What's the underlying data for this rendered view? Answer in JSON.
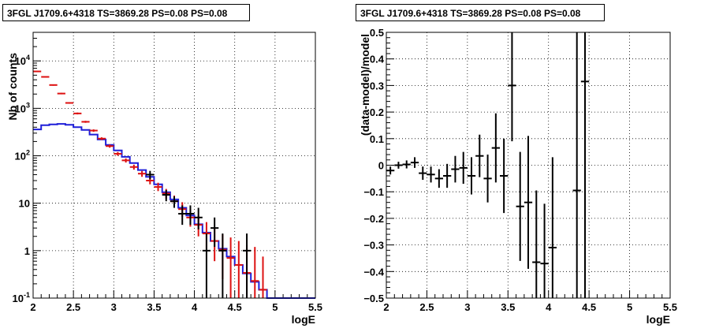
{
  "chart_data": [
    {
      "type": "line",
      "title": "3FGL J1709.6+4318 TS=3869.28 PS=0.08 PS=0.08",
      "xlabel": "logE",
      "ylabel": "Nb of counts",
      "xlim": [
        2,
        5.5
      ],
      "ylim": [
        0.1,
        40000
      ],
      "yscale": "log",
      "grid": true,
      "x_ticks": [
        "2",
        "2.5",
        "3",
        "3.5",
        "4",
        "4.5",
        "5",
        "5.5"
      ],
      "y_ticks": [
        {
          "base": "10",
          "exp": "-1",
          "value": 0.1
        },
        {
          "base": "1",
          "exp": "",
          "value": 1
        },
        {
          "base": "10",
          "exp": "",
          "value": 10
        },
        {
          "base": "10",
          "exp": "2",
          "value": 100
        },
        {
          "base": "10",
          "exp": "3",
          "value": 1000
        },
        {
          "base": "10",
          "exp": "4",
          "value": 10000
        }
      ],
      "bin_width": 0.1,
      "model_color": "#1f1fd8",
      "model_step": {
        "x_start": 2.0,
        "values": [
          360,
          440,
          460,
          470,
          450,
          400,
          350,
          280,
          220,
          170,
          130,
          95,
          70,
          50,
          36,
          25,
          17,
          12,
          8,
          5.5,
          3.6,
          2.4,
          1.6,
          1.1,
          0.75,
          0.5,
          0.33,
          0.22,
          0.15,
          0.1,
          0.1,
          0.1,
          0.1,
          0.1,
          0.1
        ]
      },
      "series": [
        {
          "name": "",
          "color": "#dd1111",
          "points": [
            {
              "x": 2.05,
              "y": 6000,
              "lo": 5850,
              "hi": 6150
            },
            {
              "x": 2.15,
              "y": 4600,
              "lo": 4480,
              "hi": 4720
            },
            {
              "x": 2.25,
              "y": 3100,
              "lo": 3000,
              "hi": 3200
            },
            {
              "x": 2.35,
              "y": 2050,
              "lo": 1980,
              "hi": 2120
            },
            {
              "x": 2.45,
              "y": 1300,
              "lo": 1250,
              "hi": 1350
            },
            {
              "x": 2.55,
              "y": 780,
              "lo": 745,
              "hi": 815
            },
            {
              "x": 2.65,
              "y": 520,
              "lo": 495,
              "hi": 545
            },
            {
              "x": 2.75,
              "y": 340,
              "lo": 320,
              "hi": 360
            },
            {
              "x": 2.85,
              "y": 230,
              "lo": 215,
              "hi": 245
            },
            {
              "x": 2.95,
              "y": 160,
              "lo": 148,
              "hi": 172
            },
            {
              "x": 3.05,
              "y": 110,
              "lo": 100,
              "hi": 120
            },
            {
              "x": 3.15,
              "y": 80,
              "lo": 72,
              "hi": 88
            },
            {
              "x": 3.25,
              "y": 58,
              "lo": 51,
              "hi": 65
            },
            {
              "x": 3.35,
              "y": 42,
              "lo": 36,
              "hi": 48
            },
            {
              "x": 3.45,
              "y": 30,
              "lo": 25,
              "hi": 35
            },
            {
              "x": 3.55,
              "y": 22,
              "lo": 18,
              "hi": 27
            },
            {
              "x": 3.65,
              "y": 16,
              "lo": 12.5,
              "hi": 20
            },
            {
              "x": 3.75,
              "y": 11,
              "lo": 8.2,
              "hi": 14.5
            },
            {
              "x": 3.85,
              "y": 7.5,
              "lo": 5.2,
              "hi": 10.5
            },
            {
              "x": 3.95,
              "y": 5,
              "lo": 3.2,
              "hi": 7.5
            },
            {
              "x": 4.05,
              "y": 3.5,
              "lo": 2,
              "hi": 5.5
            },
            {
              "x": 4.15,
              "y": 2.3,
              "lo": 1.1,
              "hi": 4
            },
            {
              "x": 4.25,
              "y": 1.6,
              "lo": 0.6,
              "hi": 3.1
            },
            {
              "x": 4.35,
              "y": 1.05,
              "lo": 0.25,
              "hi": 2.2
            },
            {
              "x": 4.45,
              "y": 0.7,
              "lo": 0.1,
              "hi": 1.9
            },
            {
              "x": 4.55,
              "y": 0.5,
              "lo": 0.1,
              "hi": 1.6
            },
            {
              "x": 4.65,
              "y": 0.34,
              "lo": 0.1,
              "hi": 1.3
            },
            {
              "x": 4.75,
              "y": 0.23,
              "lo": 0.1,
              "hi": 1.2
            },
            {
              "x": 4.85,
              "y": 0.15,
              "lo": 0.1,
              "hi": 0.75
            }
          ]
        },
        {
          "name": "",
          "color": "#000000",
          "points": [
            {
              "x": 3.45,
              "y": 40,
              "lo": 32,
              "hi": 48
            },
            {
              "x": 3.65,
              "y": 15,
              "lo": 11,
              "hi": 19
            },
            {
              "x": 3.75,
              "y": 11,
              "lo": 8,
              "hi": 14
            },
            {
              "x": 3.85,
              "y": 6,
              "lo": 3.5,
              "hi": 9
            },
            {
              "x": 3.95,
              "y": 6,
              "lo": 3.5,
              "hi": 9
            },
            {
              "x": 4.05,
              "y": 5,
              "lo": 2.8,
              "hi": 8
            },
            {
              "x": 4.15,
              "y": 1,
              "lo": 0.1,
              "hi": 2.3
            },
            {
              "x": 4.25,
              "y": 3,
              "lo": 1.2,
              "hi": 5
            },
            {
              "x": 4.35,
              "y": 1,
              "lo": 0.1,
              "hi": 2.3
            },
            {
              "x": 4.65,
              "y": 1,
              "lo": 0.1,
              "hi": 2.3
            }
          ]
        }
      ]
    },
    {
      "type": "scatter",
      "title": "3FGL J1709.6+4318 TS=3869.28 PS=0.08 PS=0.08",
      "xlabel": "logE",
      "ylabel": "(data-model)/model",
      "xlim": [
        2,
        5.5
      ],
      "ylim": [
        -0.5,
        0.5
      ],
      "grid": true,
      "x_ticks": [
        "2",
        "2.5",
        "3",
        "3.5",
        "4",
        "4.5",
        "5",
        "5.5"
      ],
      "y_ticks": [
        "−0.5",
        "−0.4",
        "−0.3",
        "−0.2",
        "−0.1",
        "0",
        "0.1",
        "0.2",
        "0.3",
        "0.4",
        "0.5"
      ],
      "bin_width": 0.1,
      "series": [
        {
          "name": "",
          "color": "#000000",
          "points": [
            {
              "x": 2.05,
              "y": -0.02,
              "lo": -0.035,
              "hi": -0.005
            },
            {
              "x": 2.15,
              "y": 0.0,
              "lo": -0.013,
              "hi": 0.013
            },
            {
              "x": 2.25,
              "y": 0.003,
              "lo": -0.012,
              "hi": 0.018
            },
            {
              "x": 2.35,
              "y": 0.01,
              "lo": -0.01,
              "hi": 0.03
            },
            {
              "x": 2.45,
              "y": -0.03,
              "lo": -0.055,
              "hi": -0.005
            },
            {
              "x": 2.55,
              "y": -0.035,
              "lo": -0.065,
              "hi": -0.005
            },
            {
              "x": 2.65,
              "y": -0.05,
              "lo": -0.085,
              "hi": -0.015
            },
            {
              "x": 2.75,
              "y": -0.04,
              "lo": -0.085,
              "hi": 0.005
            },
            {
              "x": 2.85,
              "y": -0.015,
              "lo": -0.065,
              "hi": 0.035
            },
            {
              "x": 2.95,
              "y": -0.01,
              "lo": -0.07,
              "hi": 0.05
            },
            {
              "x": 3.05,
              "y": -0.04,
              "lo": -0.11,
              "hi": 0.03
            },
            {
              "x": 3.15,
              "y": 0.035,
              "lo": -0.045,
              "hi": 0.115
            },
            {
              "x": 3.25,
              "y": -0.05,
              "lo": -0.14,
              "hi": 0.04
            },
            {
              "x": 3.35,
              "y": 0.065,
              "lo": -0.065,
              "hi": 0.195
            },
            {
              "x": 3.45,
              "y": -0.04,
              "lo": -0.18,
              "hi": 0.1
            },
            {
              "x": 3.55,
              "y": 0.3,
              "lo": 0.09,
              "hi": 0.5
            },
            {
              "x": 3.65,
              "y": -0.155,
              "lo": -0.36,
              "hi": 0.05
            },
            {
              "x": 3.75,
              "y": -0.14,
              "lo": -0.39,
              "hi": 0.11
            },
            {
              "x": 3.85,
              "y": -0.365,
              "lo": -0.5,
              "hi": -0.095
            },
            {
              "x": 3.95,
              "y": -0.37,
              "lo": -0.5,
              "hi": -0.145
            },
            {
              "x": 4.05,
              "y": -0.31,
              "lo": -0.5,
              "hi": 0.03
            },
            {
              "x": 4.35,
              "y": -0.095,
              "lo": -0.5,
              "hi": 0.5
            },
            {
              "x": 4.45,
              "y": 0.315,
              "lo": -0.5,
              "hi": 0.5
            }
          ]
        }
      ]
    }
  ]
}
